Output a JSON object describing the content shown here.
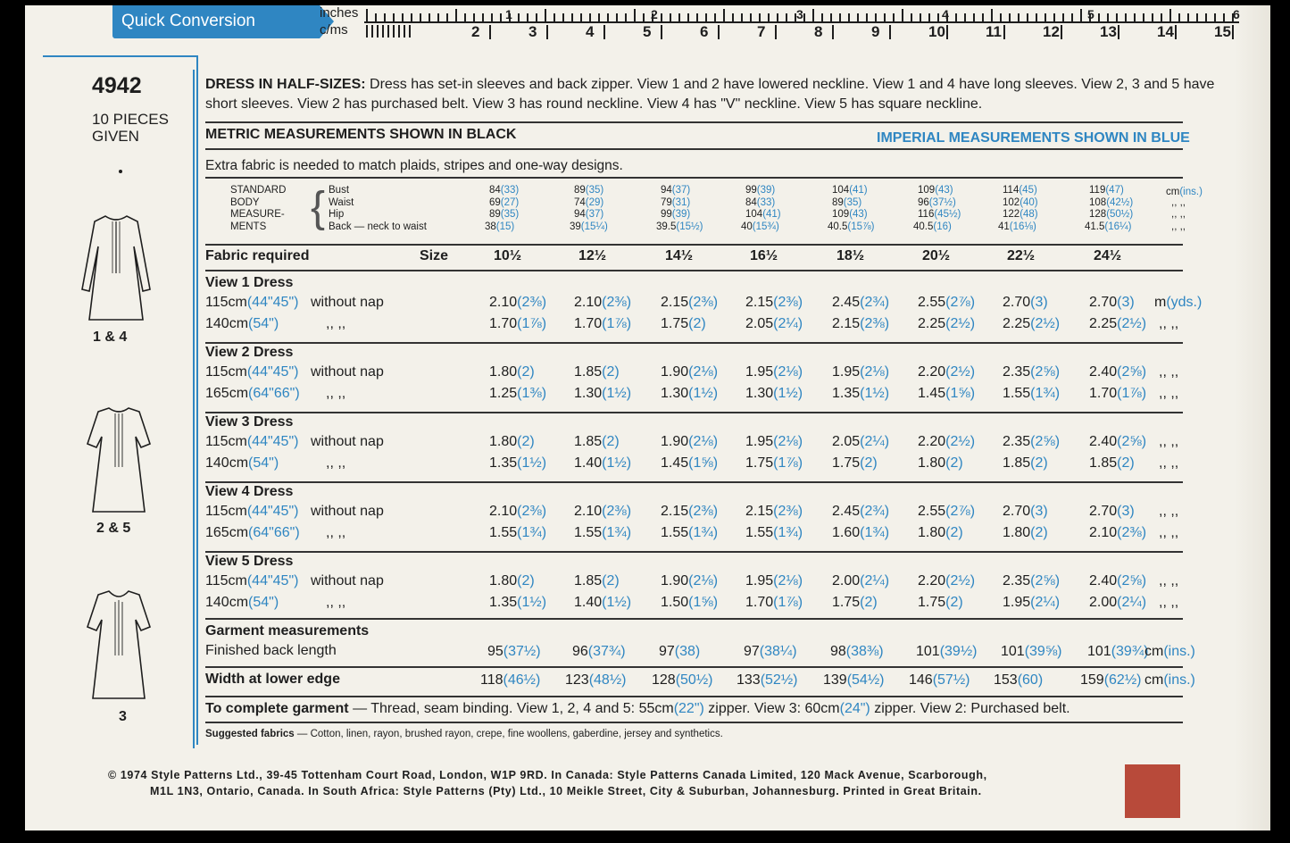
{
  "header": {
    "badge": "Quick Conversion"
  },
  "ruler": {
    "inches_label": "inches",
    "cms_label": "c/ms",
    "inch_numbers": [
      "1",
      "2",
      "3",
      "4",
      "5",
      "6"
    ],
    "cm_numbers": [
      "2",
      "3",
      "4",
      "5",
      "6",
      "7",
      "8",
      "9",
      "10",
      "11",
      "12",
      "13",
      "14",
      "15"
    ]
  },
  "sidebar": {
    "pattern_number": "4942",
    "pieces_line1": "10 PIECES",
    "pieces_line2": "GIVEN",
    "figures": [
      "1 & 4",
      "2 & 5",
      "3"
    ]
  },
  "description": {
    "heading": "DRESS IN HALF-SIZES:",
    "line1": "Dress has set-in sleeves and back zipper. View 1 and 2 have lowered neckline. View 1 and 4 have long sleeves. View 2, 3 and 5 have",
    "line2": "short sleeves. View 2 has purchased belt. View 3 has round neckline. View 4 has \"V\" neckline. View 5 has square neckline."
  },
  "headings": {
    "metric": "METRIC MEASUREMENTS SHOWN IN BLACK",
    "imperial": "IMPERIAL MEASUREMENTS SHOWN IN BLUE",
    "note": "Extra fabric is needed to match plaids, stripes and one-way designs."
  },
  "body": {
    "labels": [
      "STANDARD",
      "BODY",
      "MEASURE-",
      "MENTS"
    ],
    "rows": [
      "Bust",
      "Waist",
      "Hip",
      "Back — neck to waist"
    ],
    "values": [
      [
        [
          "84",
          "33"
        ],
        [
          "89",
          "35"
        ],
        [
          "94",
          "37"
        ],
        [
          "99",
          "39"
        ],
        [
          "104",
          "41"
        ],
        [
          "109",
          "43"
        ],
        [
          "114",
          "45"
        ],
        [
          "119",
          "47"
        ]
      ],
      [
        [
          "69",
          "27"
        ],
        [
          "74",
          "29"
        ],
        [
          "79",
          "31"
        ],
        [
          "84",
          "33"
        ],
        [
          "89",
          "35"
        ],
        [
          "96",
          "37½"
        ],
        [
          "102",
          "40"
        ],
        [
          "108",
          "42½"
        ]
      ],
      [
        [
          "89",
          "35"
        ],
        [
          "94",
          "37"
        ],
        [
          "99",
          "39"
        ],
        [
          "104",
          "41"
        ],
        [
          "109",
          "43"
        ],
        [
          "116",
          "45½"
        ],
        [
          "122",
          "48"
        ],
        [
          "128",
          "50½"
        ]
      ],
      [
        [
          "38",
          "15"
        ],
        [
          "39",
          "15¼"
        ],
        [
          "39.5",
          "15½"
        ],
        [
          "40",
          "15¾"
        ],
        [
          "40.5",
          "15⅞"
        ],
        [
          "40.5",
          "16"
        ],
        [
          "41",
          "16⅛"
        ],
        [
          "41.5",
          "16¼"
        ]
      ]
    ],
    "unit_metric": "cm",
    "unit_imperial": "(ins.)",
    "ditto": ",,  ,,"
  },
  "fabric": {
    "label": "Fabric required",
    "size_label": "Size",
    "sizes": [
      "10½",
      "12½",
      "14½",
      "16½",
      "18½",
      "20½",
      "22½",
      "24½"
    ],
    "unit_metric": "m",
    "unit_imperial": "(yds.)",
    "ditto": ",,  ,,"
  },
  "views": [
    {
      "title": "View 1   Dress",
      "rows": [
        {
          "width": "115cm",
          "imp": "(44\"45\")",
          "nap": "without nap",
          "vals": [
            [
              "2.10",
              "2⅜"
            ],
            [
              "2.10",
              "2⅜"
            ],
            [
              "2.15",
              "2⅜"
            ],
            [
              "2.15",
              "2⅜"
            ],
            [
              "2.45",
              "2¾"
            ],
            [
              "2.55",
              "2⅞"
            ],
            [
              "2.70",
              "3"
            ],
            [
              "2.70",
              "3"
            ]
          ]
        },
        {
          "width": "140cm",
          "imp": "(54\")",
          "nap": ",,     ,,",
          "vals": [
            [
              "1.70",
              "1⅞"
            ],
            [
              "1.70",
              "1⅞"
            ],
            [
              "1.75",
              "2"
            ],
            [
              "2.05",
              "2¼"
            ],
            [
              "2.15",
              "2⅜"
            ],
            [
              "2.25",
              "2½"
            ],
            [
              "2.25",
              "2½"
            ],
            [
              "2.25",
              "2½"
            ]
          ]
        }
      ]
    },
    {
      "title": "View 2   Dress",
      "rows": [
        {
          "width": "115cm",
          "imp": "(44\"45\")",
          "nap": "without nap",
          "vals": [
            [
              "1.80",
              "2"
            ],
            [
              "1.85",
              "2"
            ],
            [
              "1.90",
              "2⅛"
            ],
            [
              "1.95",
              "2⅛"
            ],
            [
              "1.95",
              "2⅛"
            ],
            [
              "2.20",
              "2½"
            ],
            [
              "2.35",
              "2⅝"
            ],
            [
              "2.40",
              "2⅝"
            ]
          ]
        },
        {
          "width": "165cm",
          "imp": "(64\"66\")",
          "nap": ",,     ,,",
          "vals": [
            [
              "1.25",
              "1⅜"
            ],
            [
              "1.30",
              "1½"
            ],
            [
              "1.30",
              "1½"
            ],
            [
              "1.30",
              "1½"
            ],
            [
              "1.35",
              "1½"
            ],
            [
              "1.45",
              "1⅝"
            ],
            [
              "1.55",
              "1¾"
            ],
            [
              "1.70",
              "1⅞"
            ]
          ]
        }
      ]
    },
    {
      "title": "View 3   Dress",
      "rows": [
        {
          "width": "115cm",
          "imp": "(44\"45\")",
          "nap": "without nap",
          "vals": [
            [
              "1.80",
              "2"
            ],
            [
              "1.85",
              "2"
            ],
            [
              "1.90",
              "2⅛"
            ],
            [
              "1.95",
              "2⅛"
            ],
            [
              "2.05",
              "2¼"
            ],
            [
              "2.20",
              "2½"
            ],
            [
              "2.35",
              "2⅝"
            ],
            [
              "2.40",
              "2⅝"
            ]
          ]
        },
        {
          "width": "140cm",
          "imp": "(54\")",
          "nap": ",,     ,,",
          "vals": [
            [
              "1.35",
              "1½"
            ],
            [
              "1.40",
              "1½"
            ],
            [
              "1.45",
              "1⅝"
            ],
            [
              "1.75",
              "1⅞"
            ],
            [
              "1.75",
              "2"
            ],
            [
              "1.80",
              "2"
            ],
            [
              "1.85",
              "2"
            ],
            [
              "1.85",
              "2"
            ]
          ]
        }
      ]
    },
    {
      "title": "View 4   Dress",
      "rows": [
        {
          "width": "115cm",
          "imp": "(44\"45\")",
          "nap": "without nap",
          "vals": [
            [
              "2.10",
              "2⅜"
            ],
            [
              "2.10",
              "2⅜"
            ],
            [
              "2.15",
              "2⅜"
            ],
            [
              "2.15",
              "2⅜"
            ],
            [
              "2.45",
              "2¾"
            ],
            [
              "2.55",
              "2⅞"
            ],
            [
              "2.70",
              "3"
            ],
            [
              "2.70",
              "3"
            ]
          ]
        },
        {
          "width": "165cm",
          "imp": "(64\"66\")",
          "nap": ",,     ,,",
          "vals": [
            [
              "1.55",
              "1¾"
            ],
            [
              "1.55",
              "1¾"
            ],
            [
              "1.55",
              "1¾"
            ],
            [
              "1.55",
              "1¾"
            ],
            [
              "1.60",
              "1¾"
            ],
            [
              "1.80",
              "2"
            ],
            [
              "1.80",
              "2"
            ],
            [
              "2.10",
              "2⅜"
            ]
          ]
        }
      ]
    },
    {
      "title": "View 5   Dress",
      "rows": [
        {
          "width": "115cm",
          "imp": "(44\"45\")",
          "nap": "without nap",
          "vals": [
            [
              "1.80",
              "2"
            ],
            [
              "1.85",
              "2"
            ],
            [
              "1.90",
              "2⅛"
            ],
            [
              "1.95",
              "2⅛"
            ],
            [
              "2.00",
              "2¼"
            ],
            [
              "2.20",
              "2½"
            ],
            [
              "2.35",
              "2⅝"
            ],
            [
              "2.40",
              "2⅝"
            ]
          ]
        },
        {
          "width": "140cm",
          "imp": "(54\")",
          "nap": ",,     ,,",
          "vals": [
            [
              "1.35",
              "1½"
            ],
            [
              "1.40",
              "1½"
            ],
            [
              "1.50",
              "1⅝"
            ],
            [
              "1.70",
              "1⅞"
            ],
            [
              "1.75",
              "2"
            ],
            [
              "1.75",
              "2"
            ],
            [
              "1.95",
              "2¼"
            ],
            [
              "2.00",
              "2¼"
            ]
          ]
        }
      ]
    }
  ],
  "garment": {
    "label": "Garment measurements",
    "back_length_label": "Finished back length",
    "back_length": [
      [
        "95",
        "37½"
      ],
      [
        "96",
        "37¾"
      ],
      [
        "97",
        "38"
      ],
      [
        "97",
        "38¼"
      ],
      [
        "98",
        "38⅜"
      ],
      [
        "101",
        "39½"
      ],
      [
        "101",
        "39⅝"
      ],
      [
        "101",
        "39¾"
      ]
    ],
    "width_label": "Width at lower edge",
    "width": [
      [
        "118",
        "46½"
      ],
      [
        "123",
        "48½"
      ],
      [
        "128",
        "50½"
      ],
      [
        "133",
        "52½"
      ],
      [
        "139",
        "54½"
      ],
      [
        "146",
        "57½"
      ],
      [
        "153",
        "60"
      ],
      [
        "159",
        "62½"
      ]
    ],
    "unit_metric": "cm",
    "unit_imperial": "(ins.)"
  },
  "complete": {
    "label": "To complete garment",
    "text_a": " — Thread, seam binding. View 1, 2, 4 and 5: 55cm",
    "imp_a": "(22\")",
    "text_b": " zipper. View 3: 60cm",
    "imp_b": "(24\")",
    "text_c": " zipper. View 2: Purchased belt."
  },
  "suggested": {
    "label": "Suggested fabrics",
    "text": "— Cotton, linen, rayon, brushed rayon, crepe, fine woollens, gaberdine, jersey and synthetics."
  },
  "footer": {
    "line1": "© 1974 Style Patterns Ltd., 39-45 Tottenham Court Road, London, W1P 9RD. In Canada: Style Patterns Canada Limited, 120 Mack Avenue, Scarborough,",
    "line2": "M1L 1N3, Ontario, Canada. In South Africa: Style Patterns (Pty) Ltd., 10 Meikle Street, City & Suburban, Johannesburg. Printed in Great Britain."
  },
  "colors": {
    "accent_blue": "#2f86c2",
    "swatch": "#b84a3a"
  }
}
